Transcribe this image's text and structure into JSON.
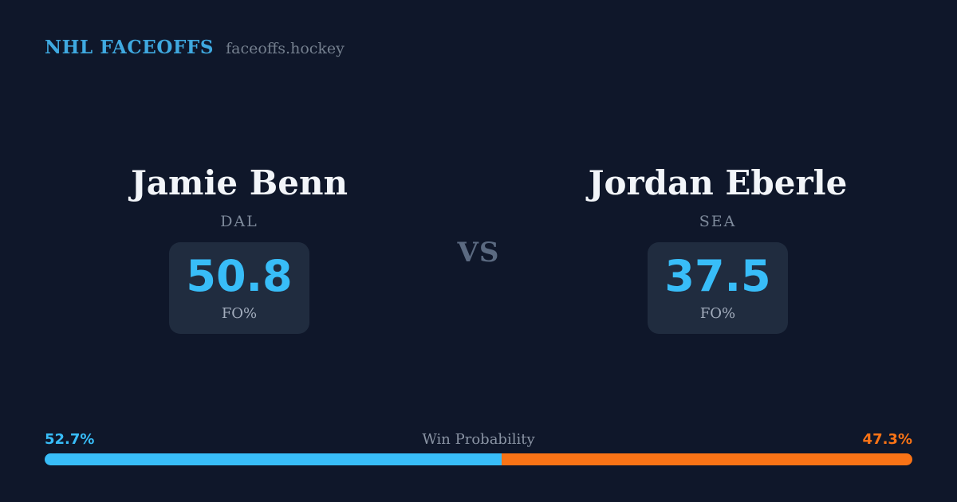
{
  "header": {
    "brand": "NHL FACEOFFS",
    "domain": "faceoffs.hockey"
  },
  "matchup": {
    "vs_label": "VS",
    "players": [
      {
        "name": "Jamie Benn",
        "team": "DAL",
        "stat_value": "50.8",
        "stat_label": "FO%"
      },
      {
        "name": "Jordan Eberle",
        "team": "SEA",
        "stat_value": "37.5",
        "stat_label": "FO%"
      }
    ]
  },
  "win_probability": {
    "title": "Win Probability",
    "left_pct_label": "52.7%",
    "right_pct_label": "47.3%",
    "left_value": 52.7,
    "right_value": 47.3,
    "left_color": "#38bdf8",
    "right_color": "#f97316"
  },
  "colors": {
    "background": "#0f172a",
    "card_background": "#202c3f",
    "brand_blue": "#3fa9e0",
    "stat_blue": "#38bdf8",
    "orange": "#f97316"
  }
}
